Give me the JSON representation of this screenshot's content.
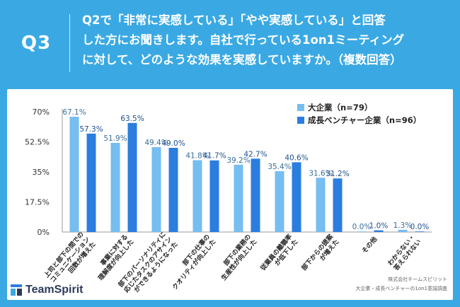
{
  "header": {
    "question_number": "Q3",
    "question_lines": [
      "Q2で「非常に実感している」「やや実感している」と回答",
      "した方にお聞きします。自社で行っている1on1ミーティング",
      "に対して、どのような効果を実感していますか。（複数回答）"
    ]
  },
  "footer": {
    "logo_text": "TeamSpirit",
    "source_line1": "株式会社チームスピリット",
    "source_line2": "大企業・成長ベンチャーの1on1意識調査"
  },
  "colors": {
    "background": "#3aa9e3",
    "series_a": "#76bdf0",
    "series_b": "#2b7de0"
  },
  "chart_data": {
    "type": "bar",
    "yticks": [
      "70%",
      "52.5%",
      "35%",
      "17.5%",
      "0%"
    ],
    "ylim": [
      0,
      70
    ],
    "categories": [
      [
        "上司と部下の間での",
        "コミュニケーション",
        "回数が増えた"
      ],
      [
        "事業に対する",
        "理解度が向上した"
      ],
      [
        "部下のパーソナリティに",
        "応じたタスクのアサイン",
        "ができるようになった"
      ],
      [
        "部下の仕事の",
        "クオリティが向上した"
      ],
      [
        "部下の業務の",
        "生産性が向上した"
      ],
      [
        "従業員の離職率",
        "が低下した"
      ],
      [
        "部下からの提案",
        "が増えた"
      ],
      [
        "その他"
      ],
      [
        "わからない・",
        "答えられない"
      ]
    ],
    "series": [
      {
        "name": "大企業（n=79）",
        "values": [
          67.1,
          51.9,
          49.4,
          41.8,
          39.2,
          35.4,
          31.6,
          0.0,
          1.3
        ],
        "labels": [
          "67.1%",
          "51.9%",
          "49.4%",
          "41.8%",
          "39.2%",
          "35.4%",
          "31.6%",
          "0.0%",
          "1.3%"
        ]
      },
      {
        "name": "成長ベンチャー企業（n=96）",
        "values": [
          57.3,
          63.5,
          49.0,
          41.7,
          42.7,
          40.6,
          31.2,
          1.0,
          0.0
        ],
        "labels": [
          "57.3%",
          "63.5%",
          "49.0%",
          "41.7%",
          "42.7%",
          "40.6%",
          "31.2%",
          "1.0%",
          "0.0%"
        ]
      }
    ],
    "legend_position": "top-right",
    "grid": false
  }
}
